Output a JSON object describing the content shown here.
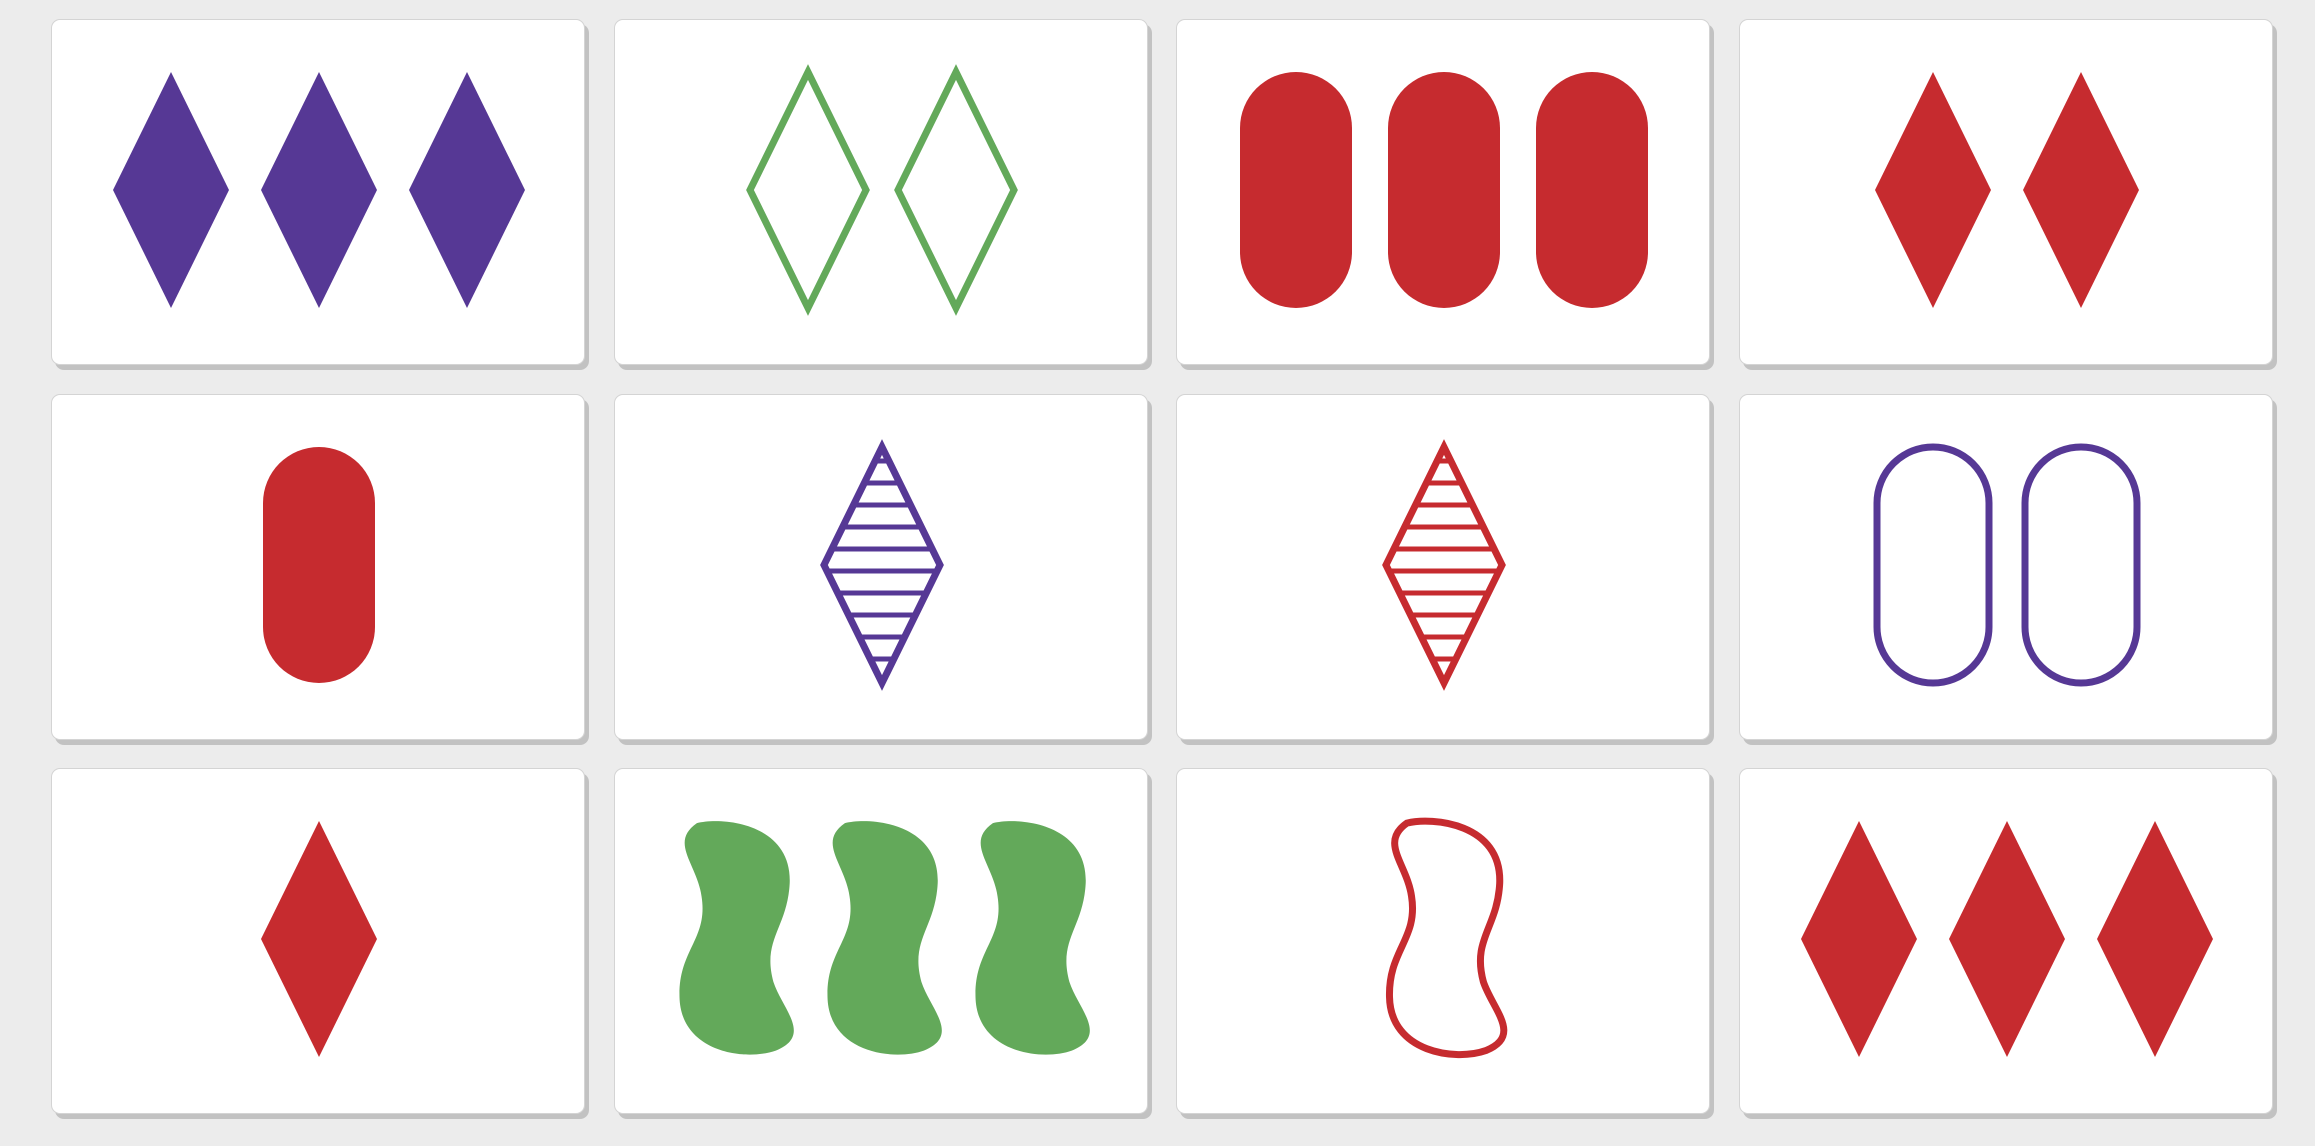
{
  "colors": {
    "purple": "#563895",
    "green": "#63a95a",
    "red": "#c62b2f",
    "background": "#ececec",
    "card": "#ffffff"
  },
  "cards": [
    {
      "id": 1,
      "count": 3,
      "shape": "diamond",
      "color": "purple",
      "shading": "solid"
    },
    {
      "id": 2,
      "count": 2,
      "shape": "diamond",
      "color": "green",
      "shading": "open"
    },
    {
      "id": 3,
      "count": 3,
      "shape": "oval",
      "color": "red",
      "shading": "solid"
    },
    {
      "id": 4,
      "count": 2,
      "shape": "diamond",
      "color": "red",
      "shading": "solid"
    },
    {
      "id": 5,
      "count": 1,
      "shape": "oval",
      "color": "red",
      "shading": "solid"
    },
    {
      "id": 6,
      "count": 1,
      "shape": "diamond",
      "color": "purple",
      "shading": "striped"
    },
    {
      "id": 7,
      "count": 1,
      "shape": "diamond",
      "color": "red",
      "shading": "striped"
    },
    {
      "id": 8,
      "count": 2,
      "shape": "oval",
      "color": "purple",
      "shading": "open"
    },
    {
      "id": 9,
      "count": 1,
      "shape": "diamond",
      "color": "red",
      "shading": "solid"
    },
    {
      "id": 10,
      "count": 3,
      "shape": "squiggle",
      "color": "green",
      "shading": "solid"
    },
    {
      "id": 11,
      "count": 1,
      "shape": "squiggle",
      "color": "red",
      "shading": "open"
    },
    {
      "id": 12,
      "count": 3,
      "shape": "diamond",
      "color": "red",
      "shading": "solid"
    }
  ]
}
